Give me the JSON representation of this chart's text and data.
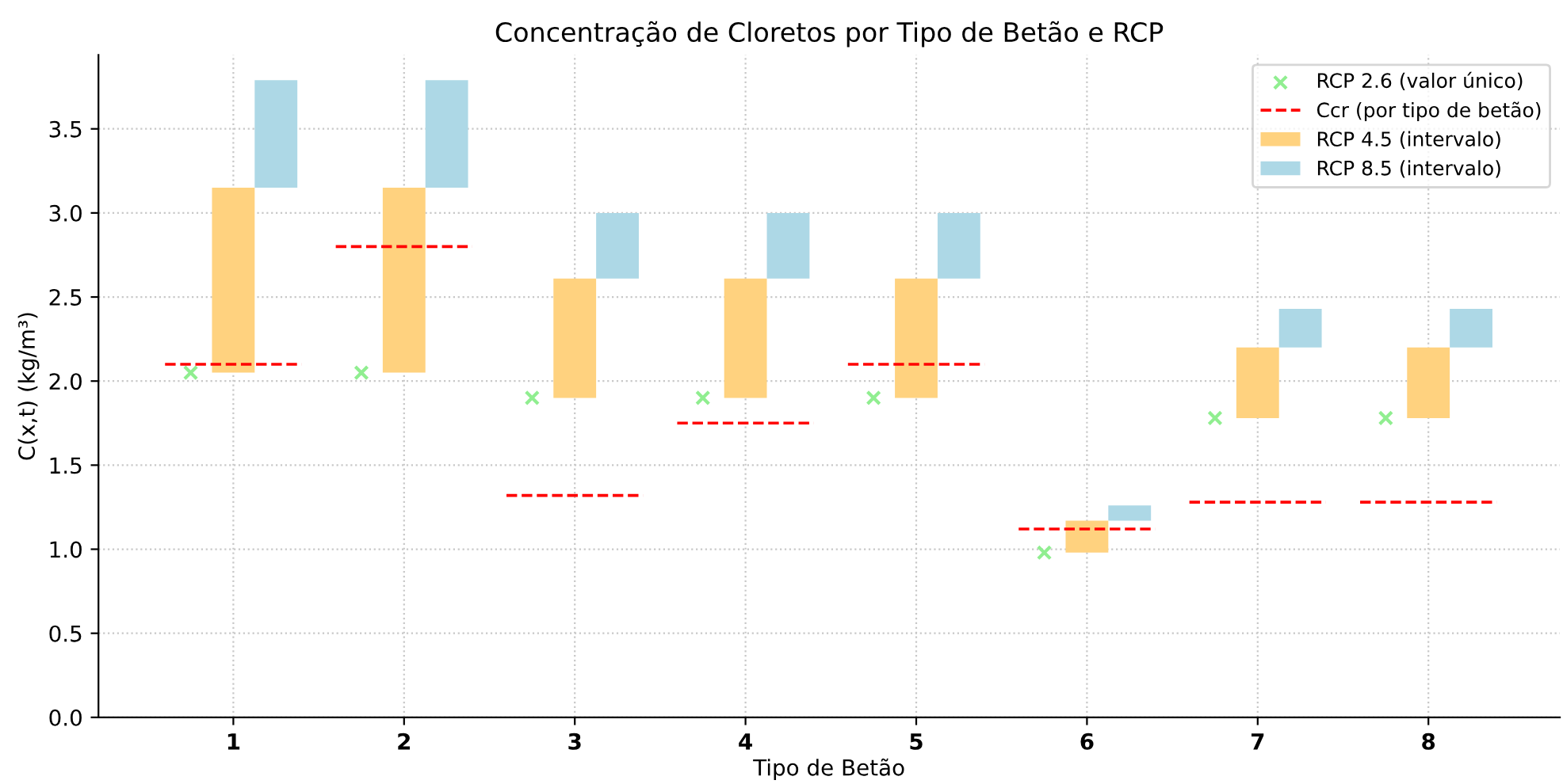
{
  "chart_data": {
    "type": "bar",
    "title": "Concentração de Cloretos por Tipo de Betão e RCP",
    "xlabel": "Tipo de Betão",
    "ylabel": "C(x,t) (kg/m³)",
    "series": [
      {
        "name": "RCP 2.6 (valor único)",
        "type": "scatter",
        "marker": "cross",
        "color": "#90ee90",
        "x": [
          0.75,
          1.75,
          2.75,
          3.75,
          4.75,
          5.75,
          6.75,
          7.75
        ],
        "values": [
          2.05,
          2.05,
          1.9,
          1.9,
          1.9,
          0.98,
          1.78,
          1.78
        ]
      },
      {
        "name": "Ccr (por tipo de betão)",
        "type": "line",
        "line_style": "dashed",
        "color": "#ff0000",
        "x": [
          0.6,
          1.4,
          null,
          1.6,
          2.4,
          null,
          2.6,
          3.4,
          null,
          3.6,
          4.4,
          null,
          4.6,
          5.4,
          null,
          5.6,
          6.4,
          null,
          6.6,
          7.4,
          null,
          7.6,
          8.4
        ],
        "values": [
          2.1,
          2.1,
          null,
          2.8,
          2.8,
          null,
          1.32,
          1.32,
          null,
          1.75,
          1.75,
          null,
          2.1,
          2.1,
          null,
          1.12,
          1.12,
          null,
          1.28,
          1.28,
          null,
          1.28,
          1.28
        ]
      },
      {
        "name": "RCP 4.5 (intervalo)",
        "color": "#ffd27f",
        "x": [
          1,
          2,
          3,
          4,
          5,
          6,
          7,
          8
        ],
        "base": [
          2.05,
          2.05,
          1.9,
          1.9,
          1.9,
          0.98,
          1.78,
          1.78
        ],
        "values": [
          1.1,
          1.1,
          0.71,
          0.71,
          0.71,
          0.19,
          0.42,
          0.42
        ]
      },
      {
        "name": "RCP 8.5 (intervalo)",
        "color": "#add8e6",
        "x": [
          1.25,
          2.25,
          3.25,
          4.25,
          5.25,
          6.25,
          7.25,
          8.25
        ],
        "base": [
          3.15,
          3.15,
          2.61,
          2.61,
          2.61,
          1.17,
          2.2,
          2.2
        ],
        "values": [
          0.64,
          0.64,
          0.39,
          0.39,
          0.39,
          0.09,
          0.23,
          0.23
        ]
      }
    ],
    "xlim": [
      0.21,
      8.77
    ],
    "xticks": [
      1,
      2,
      3,
      4,
      5,
      6,
      7,
      8
    ],
    "ylim": [
      0,
      3.94
    ],
    "yticks": [
      {
        "value": 0,
        "label": "0.0"
      },
      0.5,
      {
        "value": 1,
        "label": "1.0"
      },
      1.5,
      {
        "value": 2,
        "label": "2.0"
      },
      2.5,
      {
        "value": 3,
        "label": "3.0"
      },
      3.5
    ],
    "grid": true,
    "legend": "top right"
  }
}
